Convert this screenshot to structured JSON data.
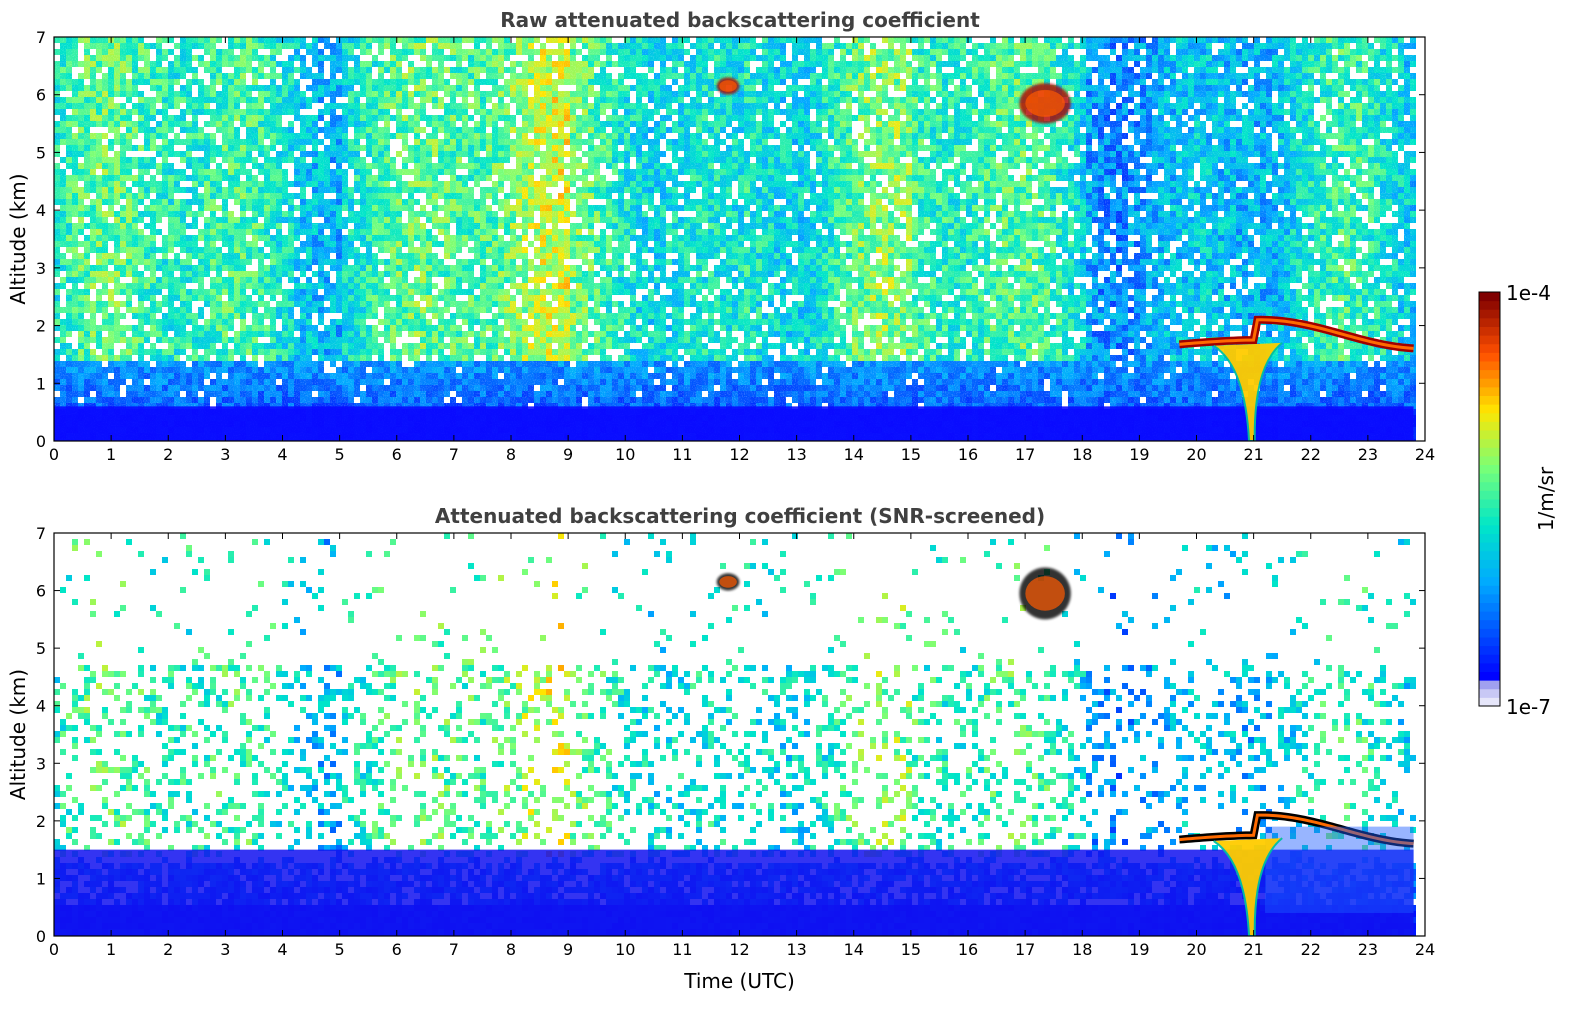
{
  "chart_data": [
    {
      "type": "heatmap",
      "title": "Raw attenuated backscattering coefficient",
      "xlabel": "",
      "ylabel": "Altitude (km)",
      "xlim": [
        0,
        24
      ],
      "ylim": [
        0,
        7
      ],
      "xticks": [
        0,
        1,
        2,
        3,
        4,
        5,
        6,
        7,
        8,
        9,
        10,
        11,
        12,
        13,
        14,
        15,
        16,
        17,
        18,
        19,
        20,
        21,
        22,
        23,
        24
      ],
      "yticks": [
        0,
        1,
        2,
        3,
        4,
        5,
        6,
        7
      ],
      "data_end_time": 23.8,
      "features": [
        {
          "kind": "low-level layer",
          "time": [
            0,
            23.8
          ],
          "altitude": [
            0,
            0.6
          ],
          "level": "high blue"
        },
        {
          "kind": "cloud",
          "time": [
            11.6,
            12.0
          ],
          "altitude": [
            6.0,
            6.3
          ]
        },
        {
          "kind": "cloud",
          "time": [
            16.9,
            17.8
          ],
          "altitude": [
            5.5,
            6.2
          ]
        },
        {
          "kind": "cloud layer",
          "time": [
            19.7,
            23.8
          ],
          "altitude": [
            1.6,
            2.1
          ]
        },
        {
          "kind": "precipitation fall streak",
          "time": [
            20.8,
            21.0
          ],
          "altitude": [
            0,
            1.7
          ]
        }
      ]
    },
    {
      "type": "heatmap",
      "title": "Attenuated backscattering coefficient (SNR-screened)",
      "xlabel": "Time (UTC)",
      "ylabel": "Altitude (km)",
      "xlim": [
        0,
        24
      ],
      "ylim": [
        0,
        7
      ],
      "xticks": [
        0,
        1,
        2,
        3,
        4,
        5,
        6,
        7,
        8,
        9,
        10,
        11,
        12,
        13,
        14,
        15,
        16,
        17,
        18,
        19,
        20,
        21,
        22,
        23,
        24
      ],
      "yticks": [
        0,
        1,
        2,
        3,
        4,
        5,
        6,
        7
      ],
      "data_end_time": 23.8,
      "features": [
        {
          "kind": "low-level layer",
          "time": [
            0,
            23.8
          ],
          "altitude": [
            0,
            1.5
          ],
          "level": "blue"
        },
        {
          "kind": "cloud",
          "time": [
            11.6,
            12.0
          ],
          "altitude": [
            6.0,
            6.3
          ]
        },
        {
          "kind": "cloud",
          "time": [
            16.9,
            17.8
          ],
          "altitude": [
            5.5,
            6.4
          ]
        },
        {
          "kind": "cloud layer",
          "time": [
            19.7,
            23.8
          ],
          "altitude": [
            1.6,
            2.1
          ]
        },
        {
          "kind": "precipitation fall streak",
          "time": [
            20.8,
            21.0
          ],
          "altitude": [
            0,
            1.7
          ]
        }
      ]
    }
  ],
  "colorbar": {
    "label": "1/m/sr",
    "max_label": "1e-4",
    "min_label": "1e-7",
    "scale": "log",
    "colors": [
      "#e6e6fa",
      "#0000ff",
      "#00bfff",
      "#7fff7f",
      "#ffd700",
      "#ff4500",
      "#800000"
    ]
  }
}
